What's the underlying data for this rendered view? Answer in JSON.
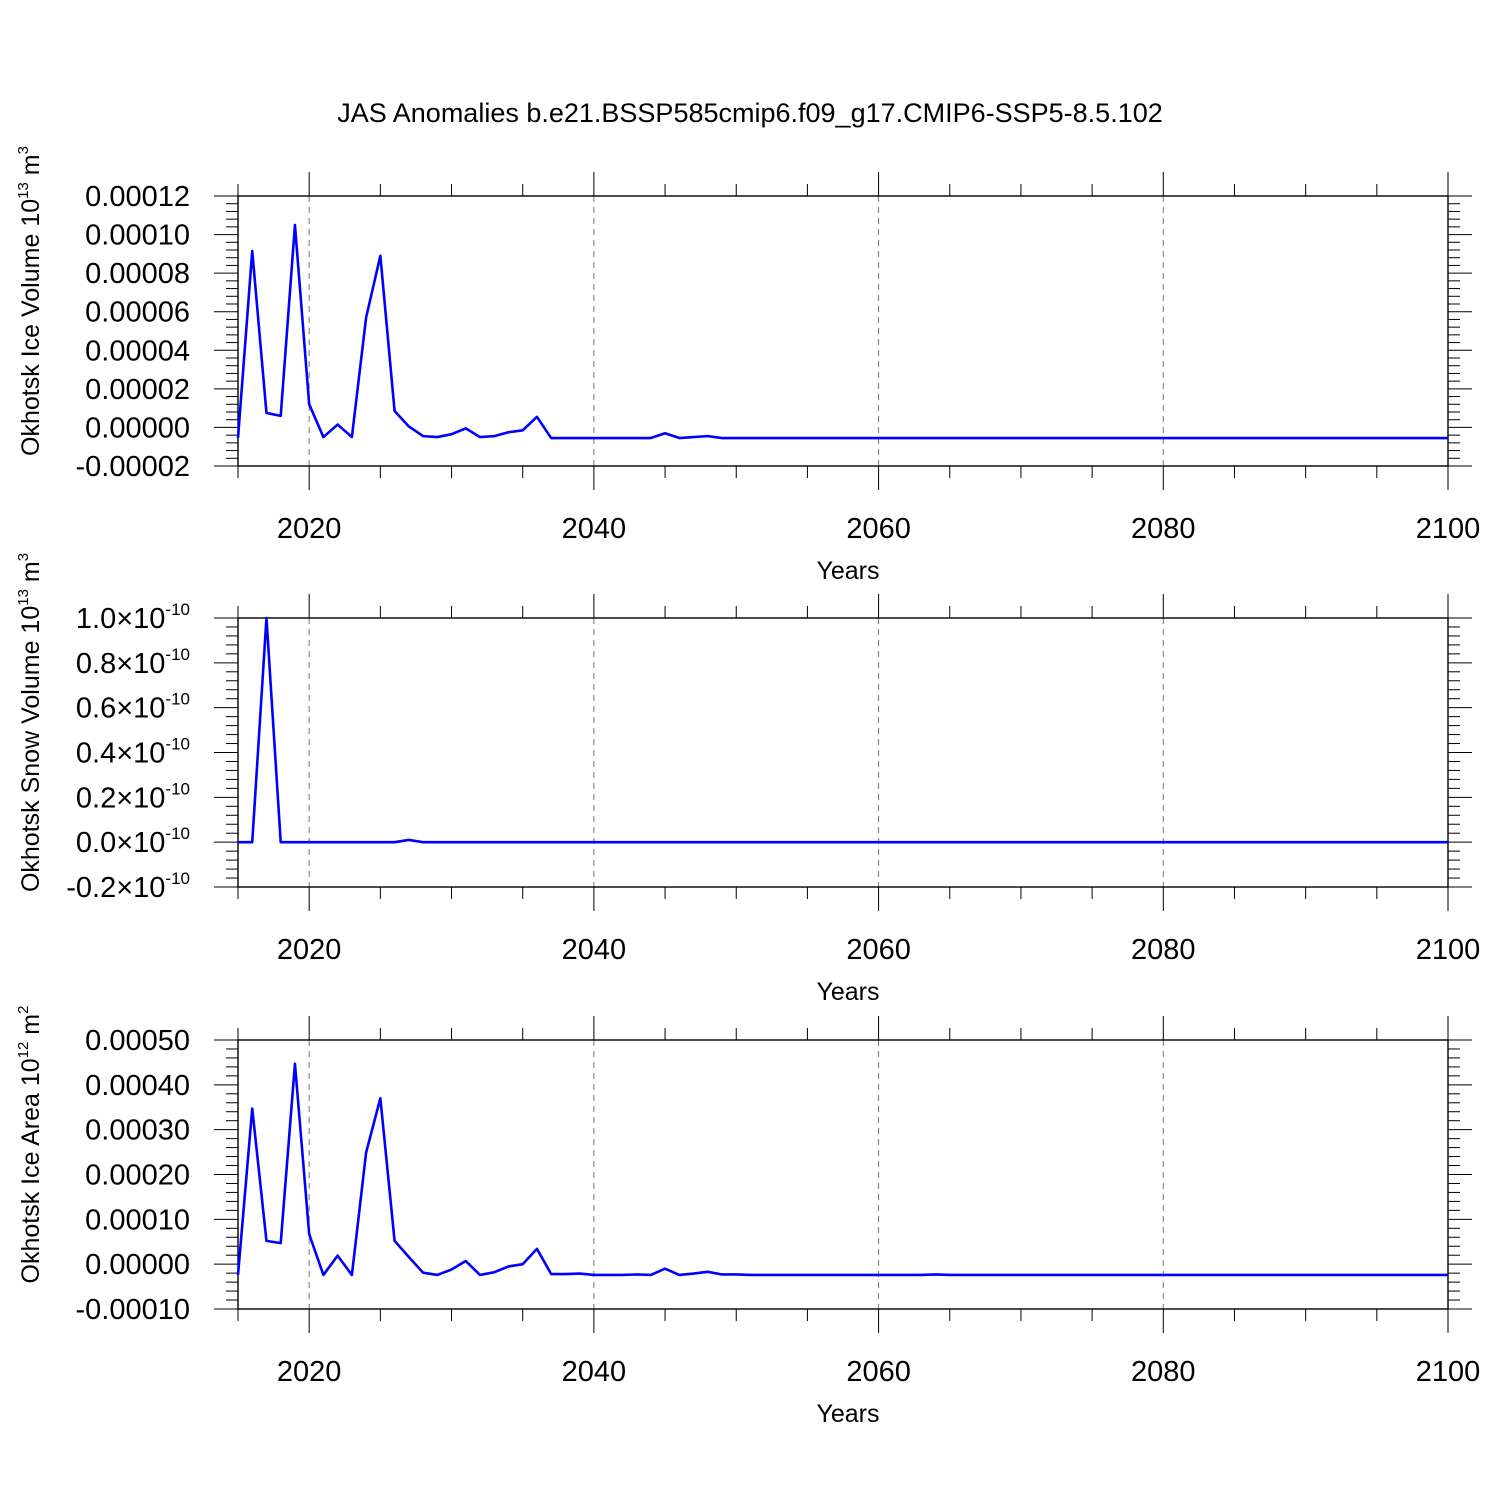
{
  "title": "JAS Anomalies b.e21.BSSP585cmip6.f09_g17.CMIP6-SSP5-8.5.102",
  "line_color": "#0000ff",
  "chart_data": [
    {
      "type": "line",
      "ylabel_main": "Okhotsk Ice Volume 10",
      "ylabel_exp": "13",
      "ylabel_unit": " m",
      "ylabel_unit_exp": "3",
      "xlabel": "Years",
      "xlim": [
        2015,
        2100
      ],
      "ylim": [
        -2e-05,
        0.00012
      ],
      "grid_x": true,
      "x_ticks": [
        2020,
        2040,
        2060,
        2080,
        2100
      ],
      "y_ticks": [
        {
          "value": -2e-05,
          "label": "-0.00002"
        },
        {
          "value": 0.0,
          "label": "0.00000"
        },
        {
          "value": 2e-05,
          "label": "0.00002"
        },
        {
          "value": 4e-05,
          "label": "0.00004"
        },
        {
          "value": 6e-05,
          "label": "0.00006"
        },
        {
          "value": 8e-05,
          "label": "0.00008"
        },
        {
          "value": 0.0001,
          "label": "0.00010"
        },
        {
          "value": 0.00012,
          "label": "0.00012"
        }
      ],
      "series": [
        {
          "x": [
            2015,
            2016,
            2017,
            2018,
            2019,
            2020,
            2021,
            2022,
            2023,
            2024,
            2025,
            2026,
            2027,
            2028,
            2029,
            2030,
            2031,
            2032,
            2033,
            2034,
            2035,
            2036,
            2037,
            2038,
            2039,
            2040,
            2041,
            2042,
            2043,
            2044,
            2045,
            2046,
            2047,
            2048,
            2049,
            2050,
            2051,
            2052,
            2053,
            2054,
            2055,
            2056,
            2057,
            2058,
            2059,
            2060,
            2061,
            2062,
            2063,
            2064,
            2065,
            2066,
            2067,
            2068,
            2069,
            2070,
            2071,
            2072,
            2073,
            2074,
            2075,
            2076,
            2077,
            2078,
            2079,
            2080,
            2081,
            2082,
            2083,
            2084,
            2085,
            2086,
            2087,
            2088,
            2089,
            2090,
            2091,
            2092,
            2093,
            2094,
            2095,
            2096,
            2097,
            2098,
            2099,
            2100
          ],
          "y": [
            -5.5e-06,
            9.15e-05,
            7.5e-06,
            6e-06,
            0.000105,
            1.2e-05,
            -5e-06,
            1.5e-06,
            -5e-06,
            5.7e-05,
            8.9e-05,
            8.5e-06,
            5e-07,
            -4.5e-06,
            -5e-06,
            -3.5e-06,
            -5e-07,
            -5e-06,
            -4.5e-06,
            -2.5e-06,
            -1.5e-06,
            5.5e-06,
            -5.5e-06,
            -5.5e-06,
            -5.5e-06,
            -5.5e-06,
            -5.5e-06,
            -5.5e-06,
            -5.5e-06,
            -5.5e-06,
            -3e-06,
            -5.5e-06,
            -5e-06,
            -4.5e-06,
            -5.5e-06,
            -5.5e-06,
            -5.5e-06,
            -5.5e-06,
            -5.5e-06,
            -5.5e-06,
            -5.5e-06,
            -5.5e-06,
            -5.5e-06,
            -5.5e-06,
            -5.5e-06,
            -5.5e-06,
            -5.5e-06,
            -5.5e-06,
            -5.5e-06,
            -5.5e-06,
            -5.5e-06,
            -5.5e-06,
            -5.5e-06,
            -5.5e-06,
            -5.5e-06,
            -5.5e-06,
            -5.5e-06,
            -5.5e-06,
            -5.5e-06,
            -5.5e-06,
            -5.5e-06,
            -5.5e-06,
            -5.5e-06,
            -5.5e-06,
            -5.5e-06,
            -5.5e-06,
            -5.5e-06,
            -5.5e-06,
            -5.5e-06,
            -5.5e-06,
            -5.5e-06,
            -5.5e-06,
            -5.5e-06,
            -5.5e-06,
            -5.5e-06,
            -5.5e-06,
            -5.5e-06,
            -5.5e-06,
            -5.5e-06,
            -5.5e-06,
            -5.5e-06,
            -5.5e-06,
            -5.5e-06,
            -5.5e-06,
            -5.5e-06,
            -5.5e-06
          ]
        }
      ]
    },
    {
      "type": "line",
      "ylabel_main": "Okhotsk Snow Volume 10",
      "ylabel_exp": "13",
      "ylabel_unit": " m",
      "ylabel_unit_exp": "3",
      "xlabel": "Years",
      "xlim": [
        2015,
        2100
      ],
      "ylim": [
        -2e-11,
        1e-10
      ],
      "grid_x": true,
      "x_ticks": [
        2020,
        2040,
        2060,
        2080,
        2100
      ],
      "y_ticks": [
        {
          "value": -2e-11,
          "mant": "-0.2",
          "exp": "-10"
        },
        {
          "value": 0.0,
          "mant": "0.0",
          "exp": "-10"
        },
        {
          "value": 2e-11,
          "mant": "0.2",
          "exp": "-10"
        },
        {
          "value": 4e-11,
          "mant": "0.4",
          "exp": "-10"
        },
        {
          "value": 6e-11,
          "mant": "0.6",
          "exp": "-10"
        },
        {
          "value": 8e-11,
          "mant": "0.8",
          "exp": "-10"
        },
        {
          "value": 1e-10,
          "mant": "1.0",
          "exp": "-10"
        }
      ],
      "series": [
        {
          "x": [
            2015,
            2016,
            2017,
            2018,
            2019,
            2020,
            2021,
            2022,
            2023,
            2024,
            2025,
            2026,
            2027,
            2028,
            2029,
            2030,
            2031,
            2032,
            2033,
            2034,
            2035,
            2036,
            2037,
            2038,
            2039,
            2040,
            2041,
            2042,
            2043,
            2044,
            2045,
            2046,
            2047,
            2048,
            2049,
            2050,
            2051,
            2052,
            2053,
            2054,
            2055,
            2056,
            2057,
            2058,
            2059,
            2060,
            2061,
            2062,
            2063,
            2064,
            2065,
            2066,
            2067,
            2068,
            2069,
            2070,
            2071,
            2072,
            2073,
            2074,
            2075,
            2076,
            2077,
            2078,
            2079,
            2080,
            2081,
            2082,
            2083,
            2084,
            2085,
            2086,
            2087,
            2088,
            2089,
            2090,
            2091,
            2092,
            2093,
            2094,
            2095,
            2096,
            2097,
            2098,
            2099,
            2100
          ],
          "y": [
            0,
            0,
            1e-10,
            0,
            -0.0,
            0,
            0,
            0,
            0,
            0,
            0,
            0,
            1e-12,
            0,
            0,
            0,
            0,
            0,
            0,
            0,
            0,
            0,
            0,
            0,
            0,
            0,
            0,
            0,
            0,
            0,
            0,
            0,
            0,
            0,
            0,
            0,
            0,
            0,
            0,
            0,
            0,
            0,
            0,
            0,
            0,
            0,
            0,
            0,
            0,
            0,
            0,
            0,
            0,
            0,
            0,
            0,
            0,
            0,
            0,
            0,
            0,
            0,
            0,
            0,
            0,
            0,
            0,
            0,
            0,
            0,
            0,
            0,
            0,
            0,
            0,
            0,
            0,
            0,
            0,
            0,
            0,
            0,
            0,
            0,
            0,
            0
          ]
        }
      ]
    },
    {
      "type": "line",
      "ylabel_main": "Okhotsk Ice Area 10",
      "ylabel_exp": "12",
      "ylabel_unit": " m",
      "ylabel_unit_exp": "2",
      "xlabel": "Years",
      "xlim": [
        2015,
        2100
      ],
      "ylim": [
        -0.0001,
        0.0005
      ],
      "grid_x": true,
      "x_ticks": [
        2020,
        2040,
        2060,
        2080,
        2100
      ],
      "y_ticks": [
        {
          "value": -0.0001,
          "label": "-0.00010"
        },
        {
          "value": 0.0,
          "label": "0.00000"
        },
        {
          "value": 0.0001,
          "label": "0.00010"
        },
        {
          "value": 0.0002,
          "label": "0.00020"
        },
        {
          "value": 0.0003,
          "label": "0.00030"
        },
        {
          "value": 0.0004,
          "label": "0.00040"
        },
        {
          "value": 0.0005,
          "label": "0.00050"
        }
      ],
      "series": [
        {
          "x": [
            2015,
            2016,
            2017,
            2018,
            2019,
            2020,
            2021,
            2022,
            2023,
            2024,
            2025,
            2026,
            2027,
            2028,
            2029,
            2030,
            2031,
            2032,
            2033,
            2034,
            2035,
            2036,
            2037,
            2038,
            2039,
            2040,
            2041,
            2042,
            2043,
            2044,
            2045,
            2046,
            2047,
            2048,
            2049,
            2050,
            2051,
            2052,
            2053,
            2054,
            2055,
            2056,
            2057,
            2058,
            2059,
            2060,
            2061,
            2062,
            2063,
            2064,
            2065,
            2066,
            2067,
            2068,
            2069,
            2070,
            2071,
            2072,
            2073,
            2074,
            2075,
            2076,
            2077,
            2078,
            2079,
            2080,
            2081,
            2082,
            2083,
            2084,
            2085,
            2086,
            2087,
            2088,
            2089,
            2090,
            2091,
            2092,
            2093,
            2094,
            2095,
            2096,
            2097,
            2098,
            2099,
            2100
          ],
          "y": [
            -2.4e-05,
            0.000347,
            5.2e-05,
            4.7e-05,
            0.000447,
            6.7e-05,
            -2.4e-05,
            1.9e-05,
            -2.4e-05,
            0.000249,
            0.00037,
            5.2e-05,
            1.6e-05,
            -1.9e-05,
            -2.4e-05,
            -1.2e-05,
            7e-06,
            -2.4e-05,
            -1.8e-05,
            -5e-06,
            0.0,
            3.4e-05,
            -2.2e-05,
            -2.2e-05,
            -2.1e-05,
            -2.4e-05,
            -2.4e-05,
            -2.4e-05,
            -2.3e-05,
            -2.4e-05,
            -1e-05,
            -2.4e-05,
            -2.1e-05,
            -1.7e-05,
            -2.3e-05,
            -2.3e-05,
            -2.4e-05,
            -2.4e-05,
            -2.4e-05,
            -2.4e-05,
            -2.4e-05,
            -2.4e-05,
            -2.4e-05,
            -2.4e-05,
            -2.4e-05,
            -2.4e-05,
            -2.4e-05,
            -2.4e-05,
            -2.4e-05,
            -2.3e-05,
            -2.4e-05,
            -2.4e-05,
            -2.4e-05,
            -2.4e-05,
            -2.4e-05,
            -2.4e-05,
            -2.4e-05,
            -2.4e-05,
            -2.4e-05,
            -2.4e-05,
            -2.4e-05,
            -2.4e-05,
            -2.4e-05,
            -2.4e-05,
            -2.4e-05,
            -2.4e-05,
            -2.4e-05,
            -2.4e-05,
            -2.4e-05,
            -2.4e-05,
            -2.4e-05,
            -2.4e-05,
            -2.4e-05,
            -2.4e-05,
            -2.4e-05,
            -2.4e-05,
            -2.4e-05,
            -2.4e-05,
            -2.4e-05,
            -2.4e-05,
            -2.4e-05,
            -2.4e-05,
            -2.4e-05,
            -2.4e-05,
            -2.4e-05,
            -2.4e-05
          ]
        }
      ]
    }
  ]
}
